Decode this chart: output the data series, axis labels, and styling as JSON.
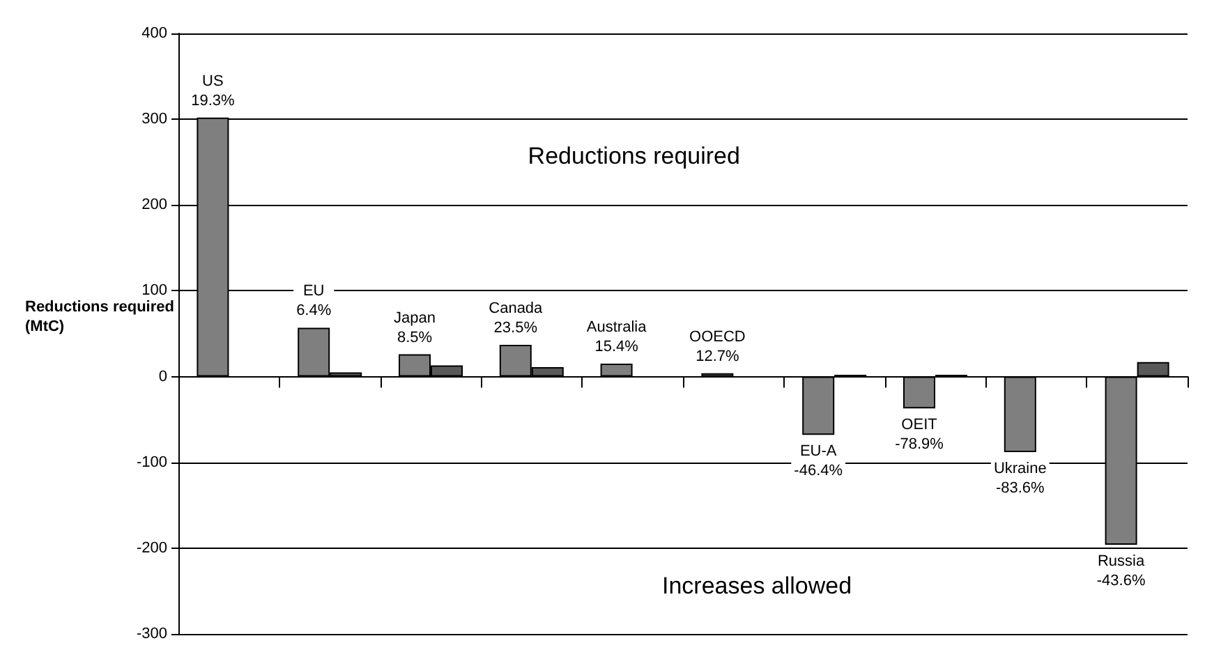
{
  "chart_data": {
    "type": "bar",
    "ylabel": "Reductions required (MtC)",
    "categories": [
      "US",
      "EU",
      "Japan",
      "Canada",
      "Australia",
      "OOECD",
      "EU-A",
      "OEIT",
      "Ukraine",
      "Russia"
    ],
    "series": [
      {
        "color": "#7f7f7f",
        "values": [
          302,
          57,
          26,
          37,
          15,
          4,
          -68,
          -37,
          -88,
          -196
        ]
      },
      {
        "color": "#595959",
        "values": [
          null,
          5,
          13,
          11,
          null,
          null,
          2,
          2,
          null,
          17
        ]
      }
    ],
    "ylim": [
      -300,
      400
    ],
    "yticks": [
      -300,
      -200,
      -100,
      0,
      100,
      200,
      300,
      400
    ],
    "grid": "y",
    "annotations": [
      "19.3%",
      "6.4%",
      "8.5%",
      "23.5%",
      "15.4%",
      "12.7%",
      "-46.4%",
      "-78.9%",
      "-83.6%",
      "-43.6%",
      "Reductions required",
      "Increases allowed"
    ]
  }
}
